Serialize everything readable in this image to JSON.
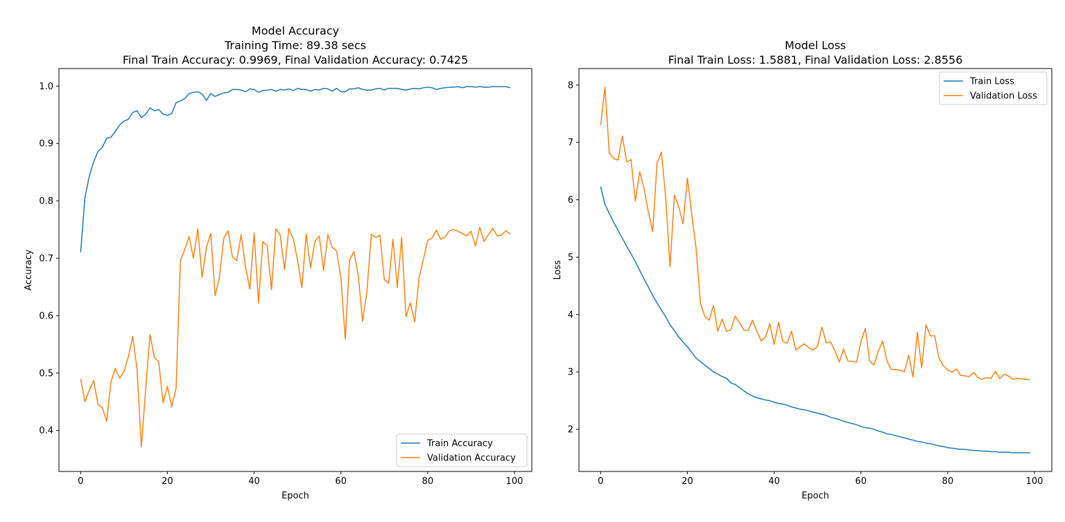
{
  "chart_data": [
    {
      "type": "line",
      "title": [
        "Model Accuracy",
        "Training Time: 89.38 secs",
        "Final Train Accuracy: 0.9969, Final Validation Accuracy: 0.7425"
      ],
      "xlabel": "Epoch",
      "ylabel": "Accuracy",
      "xlim": [
        -5,
        104
      ],
      "ylim": [
        0.3285,
        1.0305
      ],
      "xticks": [
        0,
        20,
        40,
        60,
        80,
        100
      ],
      "yticks": [
        0.4,
        0.5,
        0.6,
        0.7,
        0.8,
        0.9,
        1.0
      ],
      "grid": false,
      "legend": "lower-right",
      "series": [
        {
          "name": "Train Accuracy",
          "color": "#1f77b4",
          "values": [
            0.71,
            0.806,
            0.843,
            0.868,
            0.886,
            0.893,
            0.909,
            0.911,
            0.921,
            0.932,
            0.939,
            0.942,
            0.954,
            0.957,
            0.945,
            0.951,
            0.962,
            0.957,
            0.959,
            0.951,
            0.949,
            0.952,
            0.971,
            0.974,
            0.978,
            0.987,
            0.989,
            0.99,
            0.986,
            0.975,
            0.987,
            0.982,
            0.985,
            0.988,
            0.989,
            0.994,
            0.994,
            0.993,
            0.99,
            0.995,
            0.994,
            0.989,
            0.992,
            0.993,
            0.994,
            0.991,
            0.994,
            0.993,
            0.995,
            0.992,
            0.996,
            0.994,
            0.994,
            0.991,
            0.994,
            0.993,
            0.996,
            0.995,
            0.991,
            0.996,
            0.99,
            0.99,
            0.995,
            0.995,
            0.997,
            0.994,
            0.993,
            0.993,
            0.995,
            0.996,
            0.993,
            0.996,
            0.996,
            0.996,
            0.994,
            0.993,
            0.995,
            0.996,
            0.995,
            0.997,
            0.998,
            0.997,
            0.994,
            0.996,
            0.997,
            0.998,
            0.998,
            0.999,
            0.997,
            0.999,
            0.999,
            0.998,
            0.999,
            0.998,
            0.998,
            0.999,
            0.999,
            0.999,
            0.999,
            0.997
          ]
        },
        {
          "name": "Validation Accuracy",
          "color": "#ff7f0e",
          "values": [
            0.49,
            0.45,
            0.47,
            0.487,
            0.445,
            0.44,
            0.416,
            0.485,
            0.508,
            0.491,
            0.503,
            0.528,
            0.564,
            0.507,
            0.371,
            0.473,
            0.567,
            0.527,
            0.52,
            0.448,
            0.477,
            0.441,
            0.473,
            0.696,
            0.715,
            0.738,
            0.7,
            0.751,
            0.667,
            0.719,
            0.743,
            0.635,
            0.666,
            0.735,
            0.748,
            0.702,
            0.696,
            0.741,
            0.685,
            0.646,
            0.744,
            0.622,
            0.729,
            0.722,
            0.645,
            0.751,
            0.741,
            0.68,
            0.752,
            0.734,
            0.697,
            0.649,
            0.742,
            0.683,
            0.729,
            0.739,
            0.679,
            0.741,
            0.719,
            0.713,
            0.665,
            0.559,
            0.697,
            0.712,
            0.67,
            0.59,
            0.643,
            0.742,
            0.736,
            0.74,
            0.663,
            0.656,
            0.733,
            0.649,
            0.736,
            0.598,
            0.622,
            0.589,
            0.665,
            0.698,
            0.731,
            0.735,
            0.749,
            0.733,
            0.737,
            0.748,
            0.75,
            0.747,
            0.743,
            0.739,
            0.747,
            0.721,
            0.754,
            0.729,
            0.741,
            0.752,
            0.739,
            0.74,
            0.748,
            0.742
          ]
        }
      ]
    },
    {
      "type": "line",
      "title": [
        "Model Loss",
        "Final Train Loss: 1.5881, Final Validation Loss: 2.8556"
      ],
      "xlabel": "Epoch",
      "ylabel": "Loss",
      "xlim": [
        -5,
        104
      ],
      "ylim": [
        1.265,
        8.287
      ],
      "xticks": [
        0,
        20,
        40,
        60,
        80,
        100
      ],
      "yticks": [
        2,
        3,
        4,
        5,
        6,
        7,
        8
      ],
      "grid": false,
      "legend": "upper-right",
      "series": [
        {
          "name": "Train Loss",
          "color": "#1f77b4",
          "values": [
            6.23,
            5.92,
            5.76,
            5.61,
            5.47,
            5.33,
            5.19,
            5.06,
            4.92,
            4.77,
            4.62,
            4.48,
            4.33,
            4.2,
            4.08,
            3.96,
            3.82,
            3.72,
            3.61,
            3.52,
            3.44,
            3.34,
            3.24,
            3.18,
            3.12,
            3.06,
            3.0,
            2.96,
            2.92,
            2.89,
            2.81,
            2.78,
            2.73,
            2.67,
            2.62,
            2.58,
            2.55,
            2.53,
            2.51,
            2.5,
            2.47,
            2.45,
            2.44,
            2.42,
            2.39,
            2.37,
            2.35,
            2.34,
            2.32,
            2.3,
            2.28,
            2.26,
            2.24,
            2.21,
            2.19,
            2.17,
            2.14,
            2.12,
            2.1,
            2.08,
            2.05,
            2.03,
            2.02,
            2.0,
            1.97,
            1.95,
            1.92,
            1.91,
            1.89,
            1.87,
            1.85,
            1.83,
            1.81,
            1.79,
            1.78,
            1.76,
            1.75,
            1.73,
            1.71,
            1.7,
            1.68,
            1.67,
            1.66,
            1.65,
            1.65,
            1.64,
            1.63,
            1.63,
            1.62,
            1.62,
            1.61,
            1.61,
            1.6,
            1.6,
            1.6,
            1.59,
            1.59,
            1.59,
            1.59,
            1.59
          ]
        },
        {
          "name": "Validation Loss",
          "color": "#ff7f0e",
          "values": [
            7.3,
            7.96,
            6.81,
            6.72,
            6.69,
            7.11,
            6.66,
            6.7,
            5.98,
            6.49,
            6.2,
            5.78,
            5.45,
            6.64,
            6.83,
            6.04,
            4.83,
            6.08,
            5.88,
            5.58,
            6.38,
            5.75,
            5.15,
            4.2,
            3.97,
            3.9,
            4.16,
            3.71,
            3.92,
            3.71,
            3.73,
            3.97,
            3.86,
            3.73,
            3.72,
            3.9,
            3.71,
            3.54,
            3.61,
            3.84,
            3.48,
            3.86,
            3.53,
            3.5,
            3.71,
            3.38,
            3.44,
            3.49,
            3.42,
            3.38,
            3.45,
            3.78,
            3.51,
            3.52,
            3.37,
            3.17,
            3.4,
            3.19,
            3.18,
            3.17,
            3.53,
            3.76,
            3.19,
            3.12,
            3.36,
            3.54,
            3.19,
            3.04,
            3.04,
            3.03,
            3.0,
            3.29,
            2.91,
            3.69,
            3.07,
            3.82,
            3.63,
            3.63,
            3.24,
            3.11,
            3.03,
            3.0,
            3.05,
            2.94,
            2.93,
            2.92,
            2.99,
            2.9,
            2.87,
            2.9,
            2.89,
            3.01,
            2.88,
            2.96,
            2.93,
            2.87,
            2.89,
            2.88,
            2.87,
            2.86
          ]
        }
      ]
    }
  ]
}
